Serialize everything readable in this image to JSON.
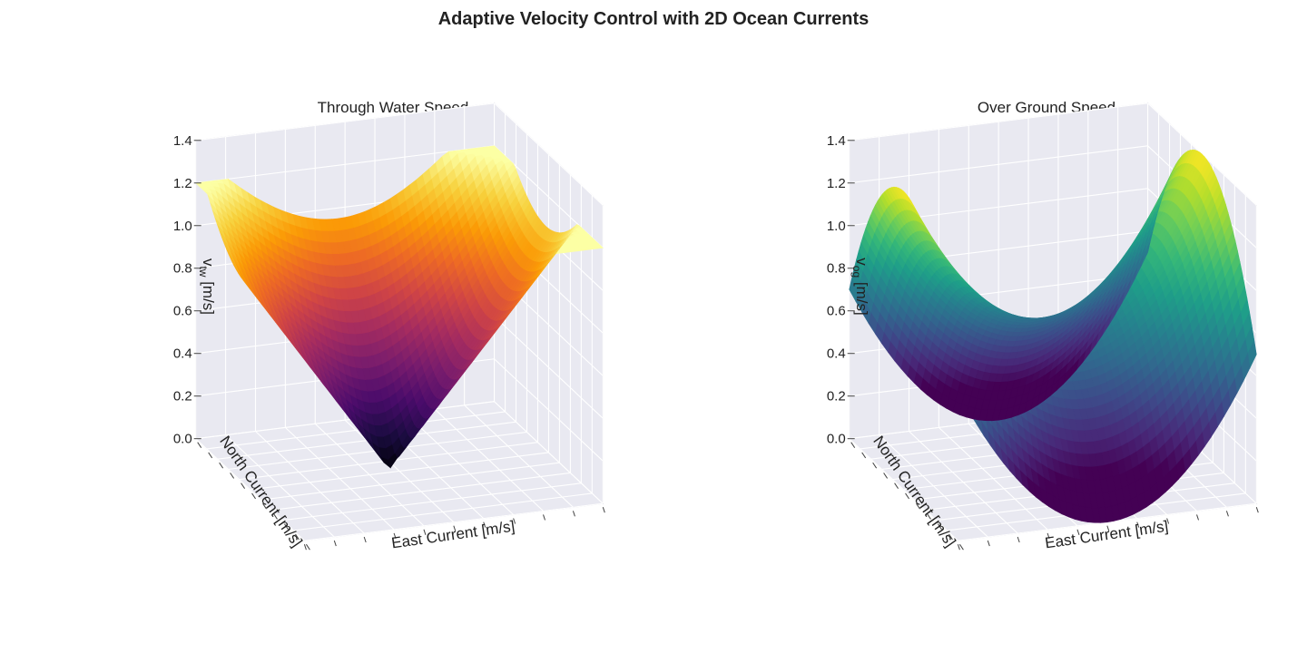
{
  "title": "Adaptive Velocity Control with 2D Ocean Currents",
  "colors": {
    "pane": "#e9e9f1",
    "grid": "#ffffff",
    "tick_mark": "#444444"
  },
  "chart_data": [
    {
      "type": "surface3d",
      "title": "Through Water Speed",
      "xlabel": "East Current [m/s]",
      "ylabel": "North Current [m/s]",
      "zlabel": "v_tw [m/s]",
      "zlabel_main": "v",
      "zlabel_sub": "tw",
      "zlabel_unit": " [m/s]",
      "zticks": [
        "0.0",
        "0.2",
        "0.4",
        "0.6",
        "0.8",
        "1.0",
        "1.2",
        "1.4"
      ],
      "zlim": [
        0,
        1.4
      ],
      "colormap": "inferno",
      "grid": true,
      "surface_model": "min(1.2, sqrt((E+0.05)^2 + (N-0.05)^2))",
      "corner_values": {
        "low": 0.0,
        "high": 1.2
      }
    },
    {
      "type": "surface3d",
      "title": "Over Ground Speed",
      "xlabel": "East Current [m/s]",
      "ylabel": "North Current [m/s]",
      "zlabel": "v_og [m/s]",
      "zlabel_main": "v",
      "zlabel_sub": "og",
      "zlabel_unit": " [m/s]",
      "zticks": [
        "0.0",
        "0.2",
        "0.4",
        "0.6",
        "0.8",
        "1.0",
        "1.2",
        "1.4"
      ],
      "zlim": [
        0,
        1.4
      ],
      "colormap": "viridis",
      "grid": true,
      "surface_model": "saddle: 0.7 + 0.7*(E^2 - N^2)",
      "corner_values": {
        "low": 0.0,
        "high": 1.4
      }
    }
  ]
}
